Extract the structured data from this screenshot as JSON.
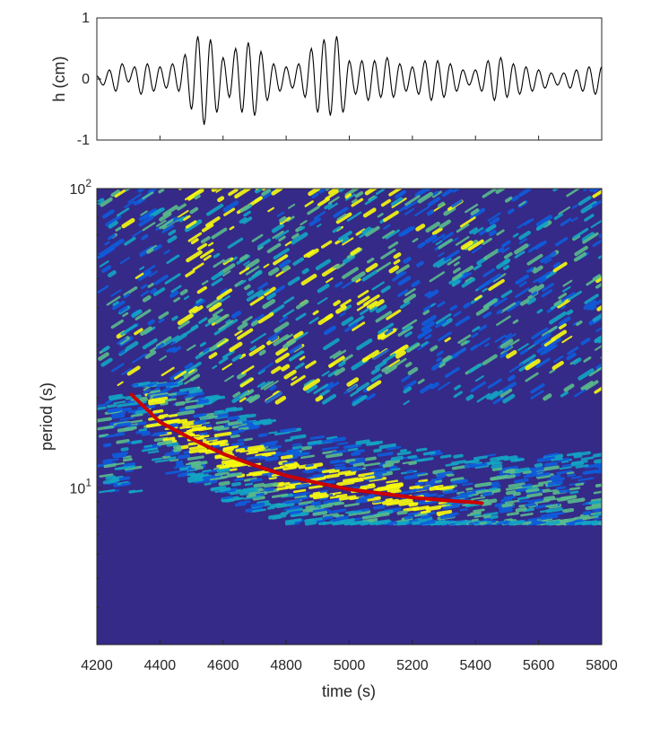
{
  "chart_data": [
    {
      "type": "line",
      "panel": "waveform",
      "ylabel": "h (cm)",
      "xlim": [
        4200,
        5800
      ],
      "ylim": [
        -1,
        1
      ],
      "yticks": [
        -1,
        0,
        1
      ],
      "ytick_labels": [
        "-1",
        "0",
        "1"
      ],
      "xticks": [
        4200,
        4400,
        4600,
        4800,
        5000,
        5200,
        5400,
        5600,
        5800
      ],
      "x_tick_labels_shown": false,
      "series": [
        {
          "x": [
            4200,
            4220,
            4240,
            4260,
            4280,
            4300,
            4320,
            4340,
            4360,
            4380,
            4400,
            4420,
            4440,
            4460,
            4480,
            4500,
            4520,
            4540,
            4560,
            4580,
            4600,
            4620,
            4640,
            4660,
            4680,
            4700,
            4720,
            4740,
            4760,
            4780,
            4800,
            4820,
            4840,
            4860,
            4880,
            4900,
            4920,
            4940,
            4960,
            4980,
            5000,
            5020,
            5040,
            5060,
            5080,
            5100,
            5120,
            5140,
            5160,
            5180,
            5200,
            5220,
            5240,
            5260,
            5280,
            5300,
            5320,
            5340,
            5360,
            5380,
            5400,
            5420,
            5440,
            5460,
            5480,
            5500,
            5520,
            5540,
            5560,
            5580,
            5600,
            5620,
            5640,
            5660,
            5680,
            5700,
            5720,
            5740,
            5760,
            5780,
            5800
          ],
          "values": [
            0.05,
            -0.1,
            0.15,
            -0.2,
            0.25,
            -0.05,
            0.2,
            -0.25,
            0.25,
            -0.2,
            0.2,
            -0.15,
            0.25,
            -0.2,
            0.4,
            -0.5,
            0.7,
            -0.75,
            0.65,
            -0.55,
            0.35,
            -0.3,
            0.5,
            -0.55,
            0.6,
            -0.6,
            0.45,
            -0.35,
            0.25,
            -0.2,
            0.2,
            -0.15,
            0.25,
            -0.3,
            0.5,
            -0.55,
            0.65,
            -0.6,
            0.7,
            -0.55,
            0.3,
            -0.25,
            0.3,
            -0.35,
            0.3,
            -0.3,
            0.35,
            -0.3,
            0.25,
            -0.2,
            0.2,
            -0.25,
            0.3,
            -0.35,
            0.3,
            -0.3,
            0.25,
            -0.2,
            0.15,
            -0.1,
            0.15,
            -0.2,
            0.3,
            -0.35,
            0.35,
            -0.3,
            0.25,
            -0.25,
            0.2,
            -0.2,
            0.15,
            -0.15,
            0.1,
            -0.1,
            0.1,
            -0.15,
            0.15,
            -0.2,
            0.2,
            -0.25,
            0.2
          ],
          "color": "#000000"
        }
      ]
    },
    {
      "type": "heatmap",
      "panel": "spectrogram",
      "xlabel": "time (s)",
      "ylabel": "period (s)",
      "xlim": [
        4200,
        5800
      ],
      "ylim": [
        3,
        100
      ],
      "y_scale": "log",
      "xticks": [
        4200,
        4400,
        4600,
        4800,
        5000,
        5200,
        5400,
        5600,
        5800
      ],
      "xtick_labels": [
        "4200",
        "4400",
        "4600",
        "4800",
        "5000",
        "5200",
        "5400",
        "5600",
        "5800"
      ],
      "yticks": [
        10,
        100
      ],
      "ytick_labels": [
        {
          "base": "10",
          "exp": "1"
        },
        {
          "base": "10",
          "exp": "2"
        }
      ],
      "colormap": {
        "low": "#352a87",
        "mid_low": "#0f5cdd",
        "mid": "#13a5c4",
        "mid_high": "#59bc8c",
        "high": "#f9fb0e"
      },
      "energy_bands": [
        {
          "description_free": true,
          "period_range": [
            25,
            100
          ],
          "time_range": [
            4200,
            5800
          ],
          "level": "high"
        },
        {
          "period_range": [
            7.5,
            20
          ],
          "time_range": [
            4200,
            5800
          ],
          "level": "mid"
        }
      ],
      "overlay_curve": {
        "color": "#cc0000",
        "x": [
          4310,
          4400,
          4500,
          4600,
          4700,
          4800,
          4900,
          5000,
          5100,
          5200,
          5300,
          5400,
          5420
        ],
        "y": [
          20.5,
          16.6,
          14.6,
          13.0,
          11.9,
          11.0,
          10.4,
          9.9,
          9.6,
          9.3,
          9.1,
          8.95,
          8.9
        ]
      }
    }
  ]
}
